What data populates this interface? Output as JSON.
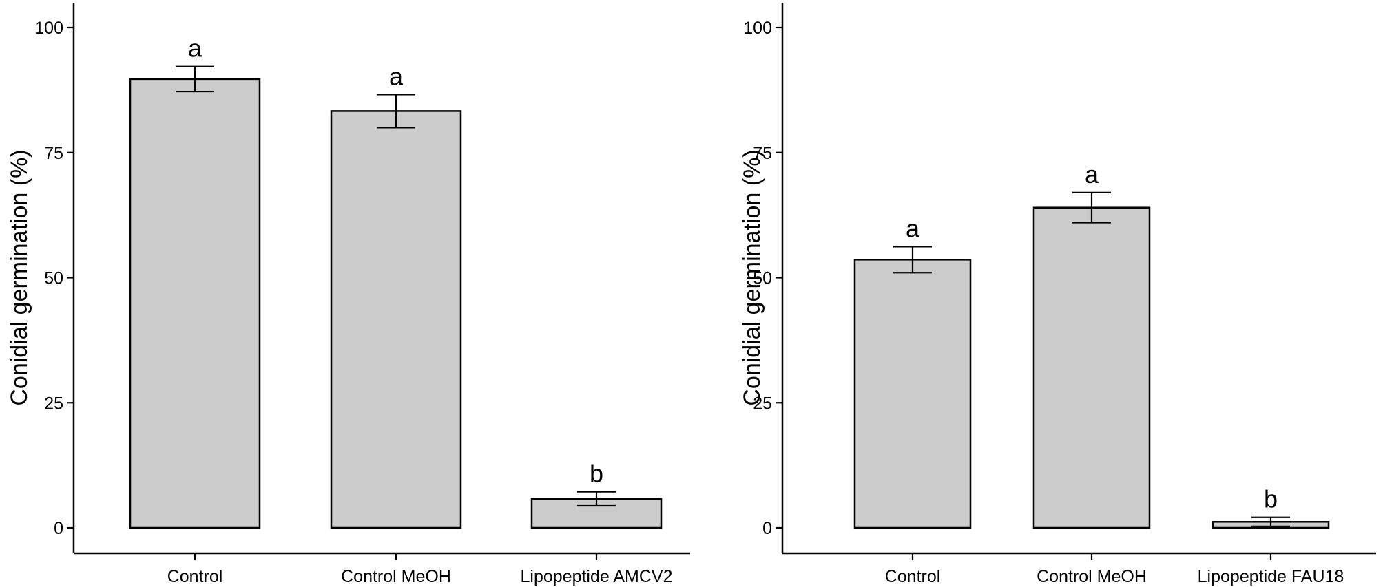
{
  "chart_data": [
    {
      "type": "bar",
      "title": "",
      "xlabel": "",
      "ylabel": "Conidial germination (%)",
      "ylim": [
        0,
        100
      ],
      "yticks": [
        0,
        25,
        50,
        75,
        100
      ],
      "ytick_labels": [
        "0",
        "25",
        "50",
        "75",
        "100"
      ],
      "categories": [
        "Control",
        "Control MeOH",
        "Lipopeptide AMCV2"
      ],
      "values": [
        89.7,
        83.3,
        5.8
      ],
      "error": [
        2.5,
        3.3,
        1.4
      ],
      "annotations": [
        "a",
        "a",
        "b"
      ],
      "bar_color": "#cccccc",
      "grid": false
    },
    {
      "type": "bar",
      "title": "",
      "xlabel": "",
      "ylabel": "Conidial germination (%)",
      "ylim": [
        0,
        100
      ],
      "yticks": [
        0,
        25,
        50,
        75,
        100
      ],
      "ytick_labels": [
        "0",
        "25",
        "50",
        "75",
        "100"
      ],
      "categories": [
        "Control",
        "Control MeOH",
        "Lipopeptide FAU18"
      ],
      "values": [
        53.6,
        64.0,
        1.2
      ],
      "error": [
        2.6,
        3.0,
        0.9
      ],
      "annotations": [
        "a",
        "a",
        "b"
      ],
      "bar_color": "#cccccc",
      "grid": false
    }
  ]
}
